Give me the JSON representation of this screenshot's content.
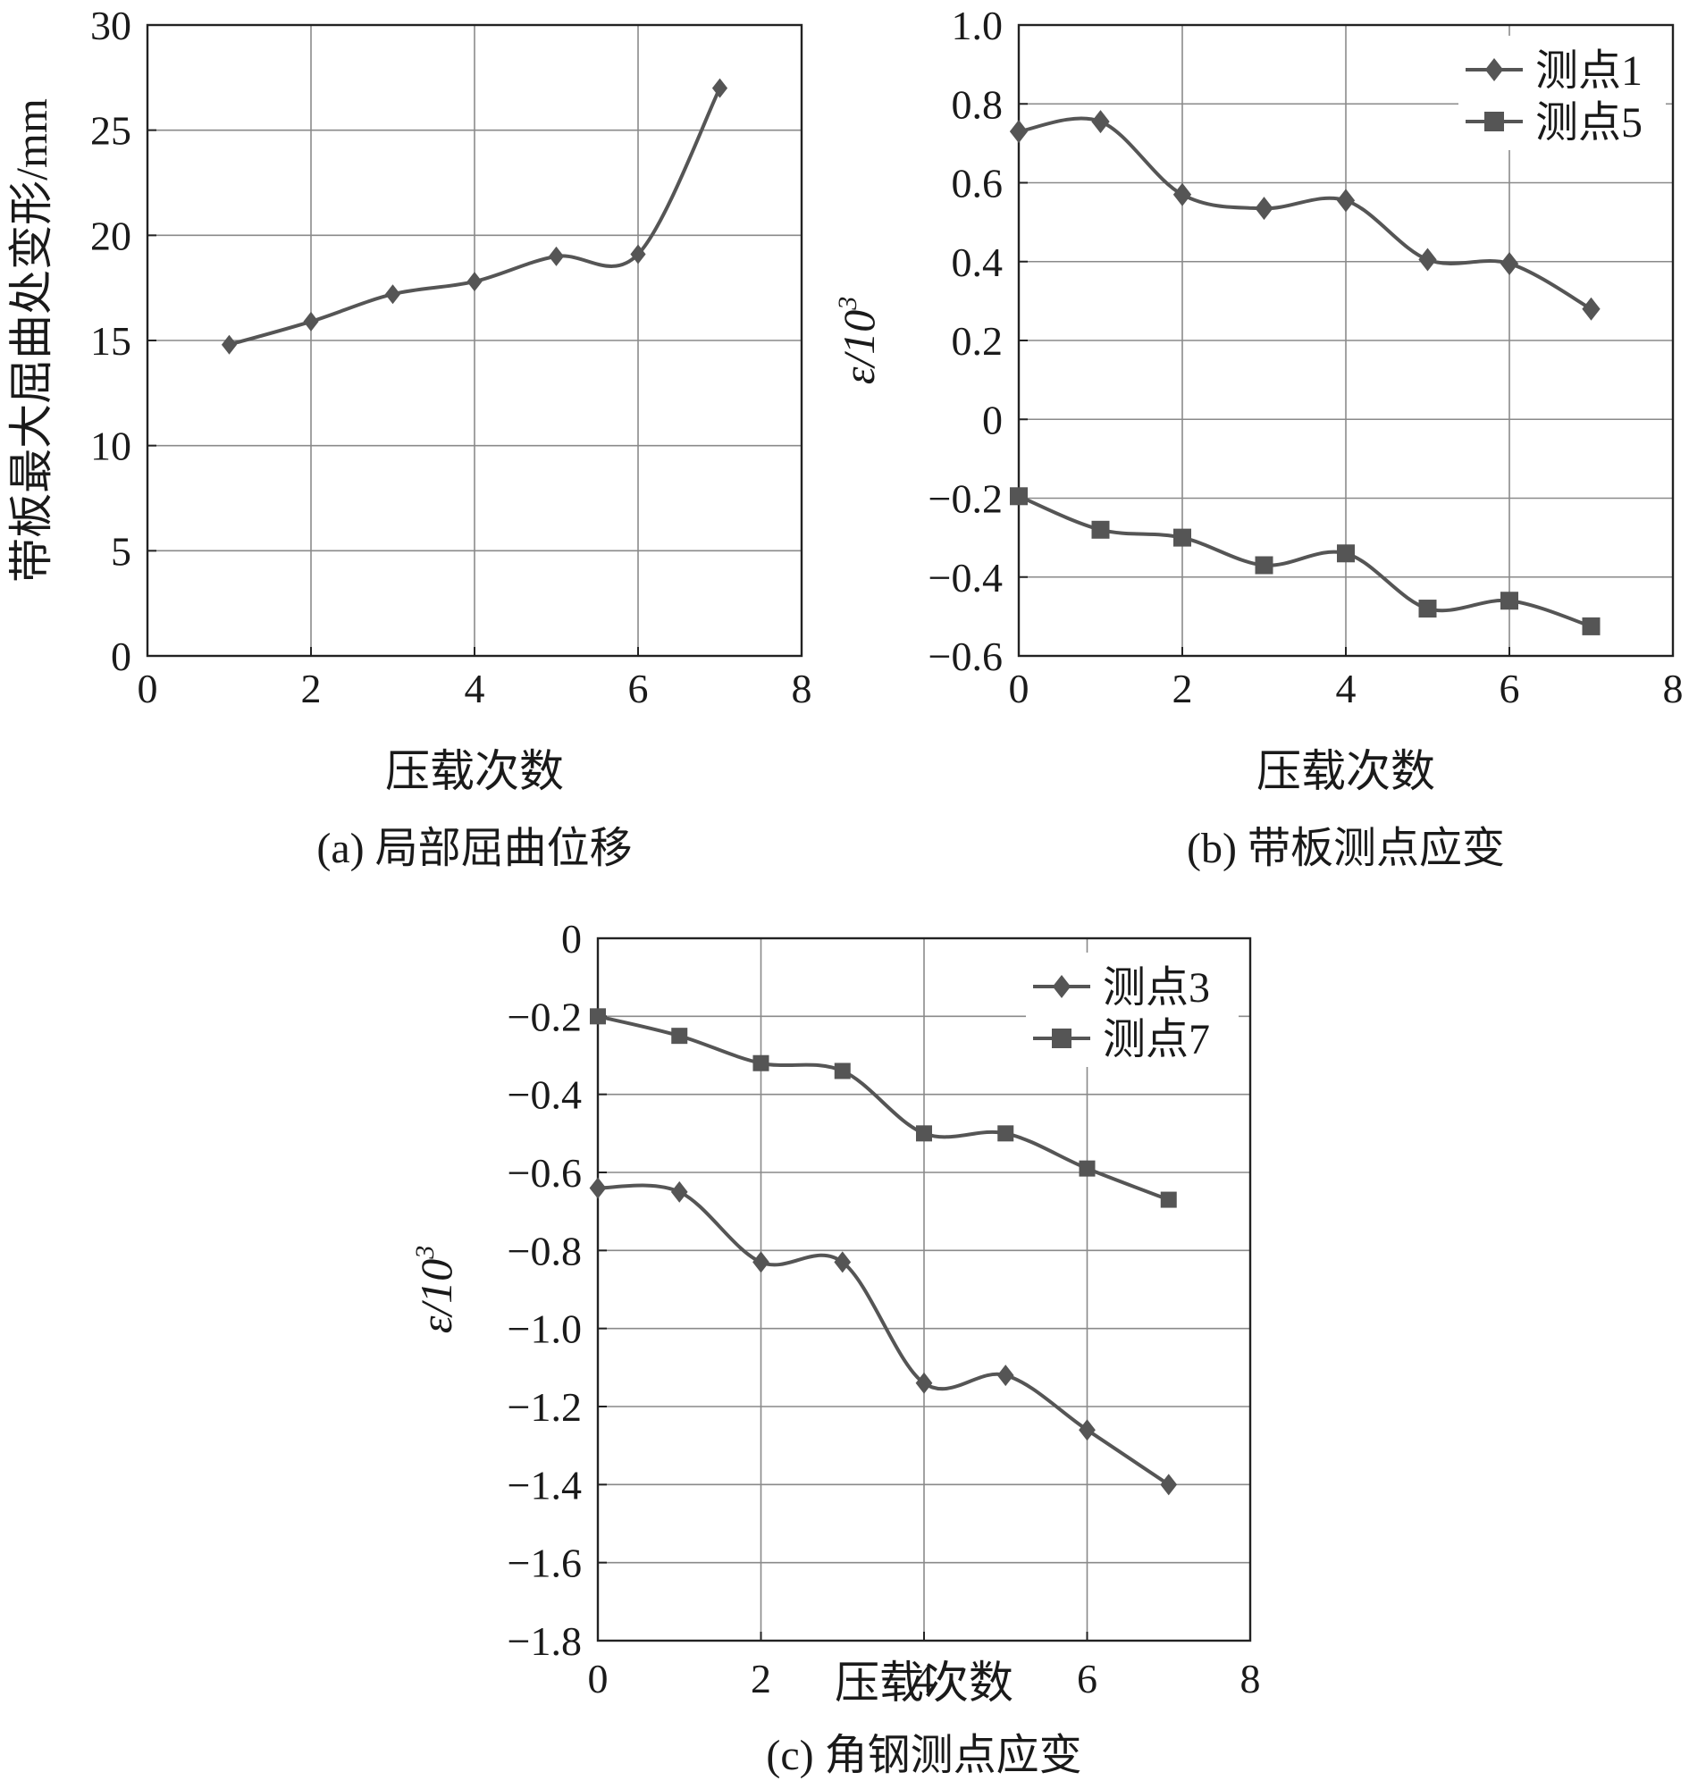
{
  "chart_data": [
    {
      "type": "line",
      "title": "",
      "caption": "(a) 局部屈曲位移",
      "xlabel": "压载次数",
      "ylabel": "带板最大屈曲处变形/mm",
      "xlim": [
        0,
        8
      ],
      "ylim": [
        0,
        30
      ],
      "xticks": [
        0,
        2,
        4,
        6,
        8
      ],
      "yticks": [
        0,
        5,
        10,
        15,
        20,
        25,
        30
      ],
      "ytick_labels": [
        "0",
        "5",
        "10",
        "15",
        "20",
        "25",
        "30"
      ],
      "grid": true,
      "legend": null,
      "series": [
        {
          "name": "",
          "marker": "diamond",
          "color": "#555555",
          "x": [
            1,
            2,
            3,
            4,
            5,
            6,
            7
          ],
          "values": [
            14.8,
            15.9,
            17.2,
            17.8,
            19.0,
            19.1,
            27.0
          ]
        }
      ]
    },
    {
      "type": "line",
      "title": "",
      "caption": "(b) 带板测点应变",
      "xlabel": "压载次数",
      "ylabel_main": "ε/10",
      "ylabel_sup": "3",
      "xlim": [
        0,
        8
      ],
      "ylim": [
        -0.6,
        1.0
      ],
      "xticks": [
        0,
        2,
        4,
        6,
        8
      ],
      "yticks": [
        -0.6,
        -0.4,
        -0.2,
        0,
        0.2,
        0.4,
        0.6,
        0.8,
        1.0
      ],
      "ytick_labels": [
        "−0.6",
        "−0.4",
        "−0.2",
        "0",
        "0.2",
        "0.4",
        "0.6",
        "0.8",
        "1.0"
      ],
      "grid": true,
      "legend": "top-right",
      "series": [
        {
          "name": "测点1",
          "marker": "diamond",
          "color": "#555555",
          "x": [
            0,
            1,
            2,
            3,
            4,
            5,
            6,
            7
          ],
          "values": [
            0.73,
            0.755,
            0.57,
            0.535,
            0.555,
            0.405,
            0.395,
            0.28
          ]
        },
        {
          "name": "测点5",
          "marker": "square",
          "color": "#555555",
          "x": [
            0,
            1,
            2,
            3,
            4,
            5,
            6,
            7
          ],
          "values": [
            -0.195,
            -0.28,
            -0.3,
            -0.37,
            -0.34,
            -0.48,
            -0.46,
            -0.525
          ]
        }
      ]
    },
    {
      "type": "line",
      "title": "",
      "caption": "(c) 角钢测点应变",
      "xlabel": "压载次数",
      "ylabel_main": "ε/10",
      "ylabel_sup": "3",
      "xlim": [
        0,
        8
      ],
      "ylim": [
        -1.8,
        0
      ],
      "xticks": [
        0,
        2,
        4,
        6,
        8
      ],
      "yticks": [
        -1.8,
        -1.6,
        -1.4,
        -1.2,
        -1.0,
        -0.8,
        -0.6,
        -0.4,
        -0.2,
        0
      ],
      "ytick_labels": [
        "−1.8",
        "−1.6",
        "−1.4",
        "−1.2",
        "−1.0",
        "−0.8",
        "−0.6",
        "−0.4",
        "−0.2",
        "0"
      ],
      "grid": true,
      "legend": "top-right",
      "series": [
        {
          "name": "测点3",
          "marker": "diamond",
          "color": "#555555",
          "x": [
            0,
            1,
            2,
            3,
            4,
            5,
            6,
            7
          ],
          "values": [
            -0.64,
            -0.65,
            -0.83,
            -0.83,
            -1.14,
            -1.12,
            -1.26,
            -1.4
          ]
        },
        {
          "name": "测点7",
          "marker": "square",
          "color": "#555555",
          "x": [
            0,
            1,
            2,
            3,
            4,
            5,
            6,
            7
          ],
          "values": [
            -0.2,
            -0.25,
            -0.32,
            -0.34,
            -0.5,
            -0.5,
            -0.59,
            -0.67
          ]
        }
      ]
    }
  ]
}
